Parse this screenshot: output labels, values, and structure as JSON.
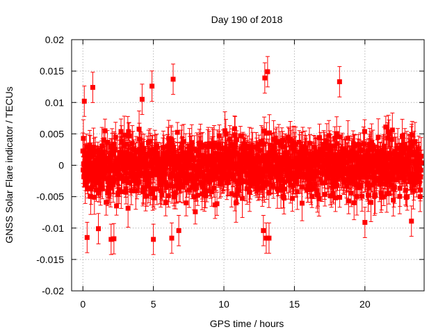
{
  "chart_data": {
    "type": "scatter",
    "title": "Day 190 of 2018",
    "xlabel": "GPS time / hours",
    "ylabel": "GNSS Solar Flare indicator / TECUs",
    "xlim": [
      -0.8,
      24.2
    ],
    "ylim": [
      -0.02,
      0.02
    ],
    "x_ticks": [
      0,
      5,
      10,
      15,
      20
    ],
    "x_tick_labels": [
      "0",
      "5",
      "10",
      "15",
      "20"
    ],
    "y_ticks": [
      -0.02,
      -0.015,
      -0.01,
      -0.005,
      0,
      0.005,
      0.01,
      0.015,
      0.02
    ],
    "y_tick_labels": [
      "-0.02",
      "-0.015",
      "-0.01",
      "-0.005",
      "0",
      "0.005",
      "0.01",
      "0.015",
      "0.02"
    ],
    "grid": true,
    "series_color": "#ff0000",
    "marker": "square",
    "error_bars": true,
    "sampling": {
      "x_start": 0,
      "x_end": 24,
      "num_points": 1440,
      "typical_spread": 0.004,
      "typical_error": 0.0022
    },
    "notable_points": [
      {
        "x": 0.1,
        "y": 0.0102
      },
      {
        "x": 0.7,
        "y": 0.0124
      },
      {
        "x": 0.3,
        "y": -0.0115
      },
      {
        "x": 1.1,
        "y": -0.0101
      },
      {
        "x": 2.0,
        "y": -0.0118
      },
      {
        "x": 2.2,
        "y": -0.0117
      },
      {
        "x": 4.2,
        "y": 0.0105
      },
      {
        "x": 4.9,
        "y": 0.0126
      },
      {
        "x": 5.0,
        "y": -0.0118
      },
      {
        "x": 6.4,
        "y": 0.0137
      },
      {
        "x": 6.3,
        "y": -0.0116
      },
      {
        "x": 6.8,
        "y": -0.0104
      },
      {
        "x": 12.9,
        "y": 0.0139
      },
      {
        "x": 13.1,
        "y": 0.0149
      },
      {
        "x": 13.0,
        "y": -0.0116
      },
      {
        "x": 13.2,
        "y": -0.0116
      },
      {
        "x": 12.8,
        "y": -0.0104
      },
      {
        "x": 18.2,
        "y": 0.0133
      },
      {
        "x": 20.0,
        "y": -0.0091
      },
      {
        "x": 23.3,
        "y": -0.0089
      }
    ]
  }
}
